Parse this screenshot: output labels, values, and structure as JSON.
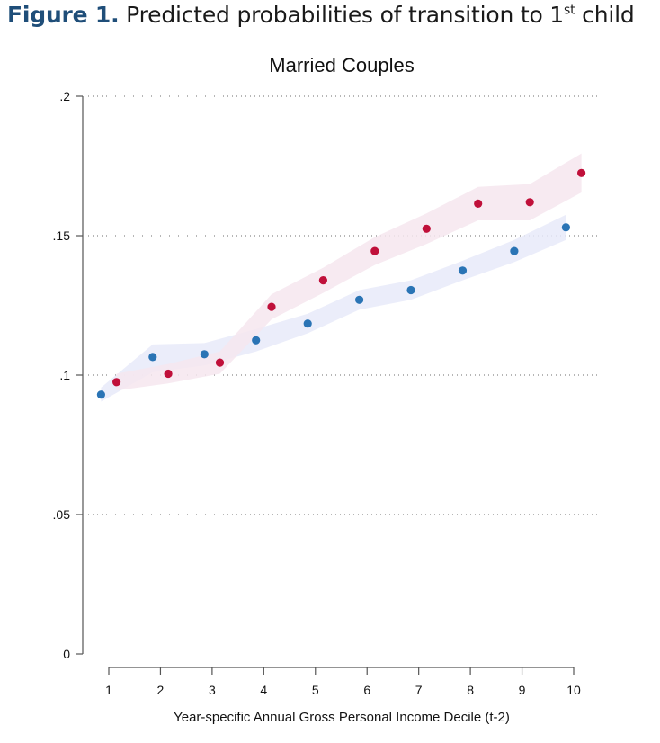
{
  "figure": {
    "label": "Figure 1.",
    "caption_main": "Predicted probabilities of transition to 1",
    "caption_sup": "st",
    "caption_end": "child"
  },
  "chart_data": {
    "type": "scatter",
    "title": "Married Couples",
    "xlabel": "Year-specific Annual Gross Personal Income Decile (t-2)",
    "ylabel": "",
    "xlim": [
      1,
      10
    ],
    "ylim": [
      0,
      0.2
    ],
    "x_ticks": [
      "1",
      "2",
      "3",
      "4",
      "5",
      "6",
      "7",
      "8",
      "9",
      "10"
    ],
    "y_ticks": [
      {
        "value": 0,
        "label": "0"
      },
      {
        "value": 0.05,
        "label": ".05"
      },
      {
        "value": 0.1,
        "label": ".1"
      },
      {
        "value": 0.15,
        "label": ".15"
      },
      {
        "value": 0.2,
        "label": ".2"
      }
    ],
    "grid": "horizontal dotted",
    "series": [
      {
        "color": "#2a74b5",
        "band_color": "#e7eaf9",
        "x": [
          0.85,
          1.85,
          2.85,
          3.85,
          4.85,
          5.85,
          6.85,
          7.85,
          8.85,
          9.85
        ],
        "y": [
          0.093,
          0.1065,
          0.1075,
          0.1125,
          0.1185,
          0.127,
          0.1305,
          0.1375,
          0.1445,
          0.153
        ],
        "ci_low": [
          0.0905,
          0.101,
          0.1035,
          0.1085,
          0.115,
          0.1235,
          0.127,
          0.134,
          0.1405,
          0.1485
        ],
        "ci_high": [
          0.0955,
          0.111,
          0.1115,
          0.1165,
          0.122,
          0.1305,
          0.134,
          0.141,
          0.1485,
          0.1575
        ]
      },
      {
        "color": "#c0103a",
        "band_color": "#f6e6ee",
        "x": [
          1.15,
          2.15,
          3.15,
          4.15,
          5.15,
          6.15,
          7.15,
          8.15,
          9.15,
          10.15
        ],
        "y": [
          0.0975,
          0.1005,
          0.1045,
          0.1245,
          0.134,
          0.1445,
          0.1525,
          0.1615,
          0.162,
          0.1725
        ],
        "ci_low": [
          0.0945,
          0.097,
          0.1005,
          0.12,
          0.1295,
          0.1395,
          0.147,
          0.1555,
          0.1555,
          0.1655
        ],
        "ci_high": [
          0.1005,
          0.104,
          0.1085,
          0.129,
          0.1385,
          0.1495,
          0.158,
          0.1675,
          0.1685,
          0.1795
        ]
      }
    ]
  }
}
